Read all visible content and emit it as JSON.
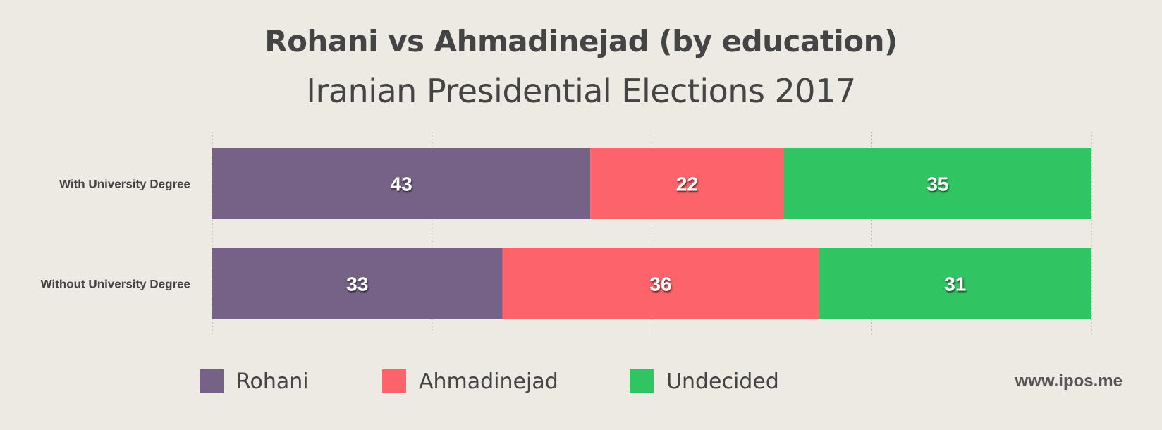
{
  "chart_data": {
    "type": "bar",
    "orientation": "horizontal",
    "stacked": true,
    "title": "Rohani vs Ahmadinejad (by education)",
    "subtitle": "Iranian Presidential Elections 2017",
    "categories": [
      "With University Degree",
      "Without University Degree"
    ],
    "series": [
      {
        "name": "Rohani",
        "values": [
          43,
          33
        ],
        "color": "#766286"
      },
      {
        "name": "Ahmadinejad",
        "values": [
          22,
          36
        ],
        "color": "#fd636b"
      },
      {
        "name": "Undecided",
        "values": [
          35,
          31
        ],
        "color": "#31c463"
      }
    ],
    "xlim": [
      0,
      100
    ],
    "grid": true,
    "legend_position": "bottom"
  },
  "watermark": "www.ipos.me"
}
